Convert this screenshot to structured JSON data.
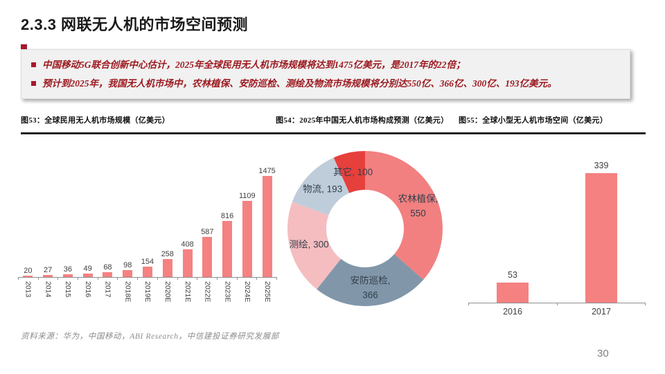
{
  "header": {
    "title": "2.3.3 网联无人机的市场空间预测"
  },
  "callout": {
    "accent_color": "#A6192E",
    "text_color": "#9C1A20",
    "bullets": [
      "中国移动5G联合创新中心估计，2025年全球民用无人机市场规模将达到1475亿美元，是2017年的22倍；",
      "预计到2025年，我国无人机市场中，农林植保、安防巡检、测绘及物流市场规模将分别达550亿、366亿、300亿、193亿美元。"
    ]
  },
  "chart_data": [
    {
      "id": "global-civil-drone-market",
      "type": "bar",
      "title": "图53：全球民用无人机市场规模（亿美元）",
      "categories": [
        "2013",
        "2014",
        "2015",
        "2016",
        "2017",
        "2018E",
        "2019E",
        "2020E",
        "2021E",
        "2022E",
        "2023E",
        "2024E",
        "2025E"
      ],
      "values": [
        20,
        27,
        36,
        49,
        68,
        98,
        154,
        258,
        408,
        587,
        816,
        1109,
        1475
      ],
      "bar_color": "#F58181",
      "ylim": [
        0,
        1500
      ],
      "grid": false,
      "data_labels": true,
      "x_label_rotation": -90
    },
    {
      "id": "china-drone-market-composition-2025",
      "type": "pie",
      "donut": true,
      "title": "图54：2025年中国无人机市场构成预测（亿美元）",
      "label_color": "#333F4B",
      "direction": "clockwise",
      "start_angle_deg": 0,
      "segments": [
        {
          "label": "农林植保",
          "value": 550,
          "color": "#F28080"
        },
        {
          "label": "安防巡检",
          "value": 366,
          "color": "#8197A9"
        },
        {
          "label": "测绘",
          "value": 300,
          "color": "#F5BDC0"
        },
        {
          "label": "物流",
          "value": 193,
          "color": "#BFCDDB"
        },
        {
          "label": "其它",
          "value": 100,
          "color": "#E6403D"
        }
      ]
    },
    {
      "id": "global-small-drone-market",
      "type": "bar",
      "title": "图55：全球小型无人机市场空间（亿美元）",
      "categories": [
        "2016",
        "2017"
      ],
      "values": [
        53,
        339
      ],
      "bar_color": "#F58181",
      "ylim": [
        0,
        350
      ],
      "grid": false,
      "data_labels": true,
      "x_label_rotation": 0
    }
  ],
  "footer": {
    "source": "资料来源：华为，中国移动，ABI Research，中信建投证券研究发展部",
    "page_number": "30"
  }
}
